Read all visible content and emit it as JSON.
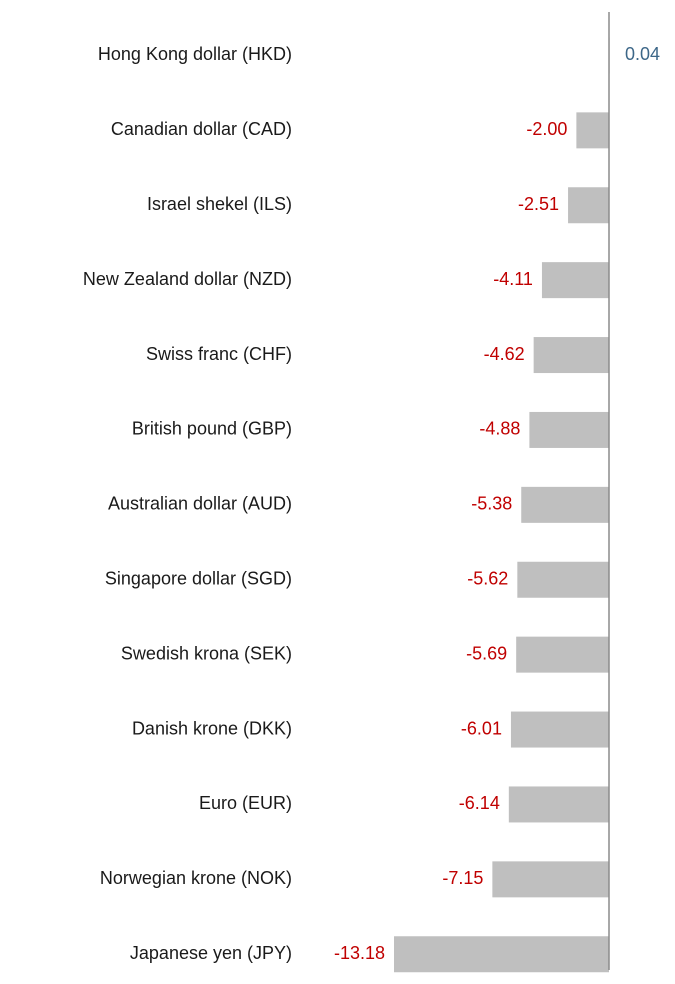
{
  "chart_data": {
    "type": "barh",
    "categories": [
      "Hong Kong dollar (HKD)",
      "Canadian dollar (CAD)",
      "Israel shekel (ILS)",
      "New Zealand dollar (NZD)",
      "Swiss franc (CHF)",
      "British pound (GBP)",
      "Australian dollar (AUD)",
      "Singapore dollar (SGD)",
      "Swedish krona (SEK)",
      "Danish krone (DKK)",
      "Euro (EUR)",
      "Norwegian krone (NOK)",
      "Japanese yen (JPY)"
    ],
    "values": [
      0.04,
      -2.0,
      -2.51,
      -4.11,
      -4.62,
      -4.88,
      -5.38,
      -5.62,
      -5.69,
      -6.01,
      -6.14,
      -7.15,
      -13.18
    ],
    "value_labels": [
      "0.04",
      "-2.00",
      "-2.51",
      "-4.11",
      "-4.62",
      "-4.88",
      "-5.38",
      "-5.62",
      "-5.69",
      "-6.01",
      "-6.14",
      "-7.15",
      "-13.18"
    ],
    "color": "#bfbfbf",
    "positive_label_color": "#3d6788",
    "negative_label_color": "#c00000",
    "axis_color": "#8c8c8c"
  }
}
